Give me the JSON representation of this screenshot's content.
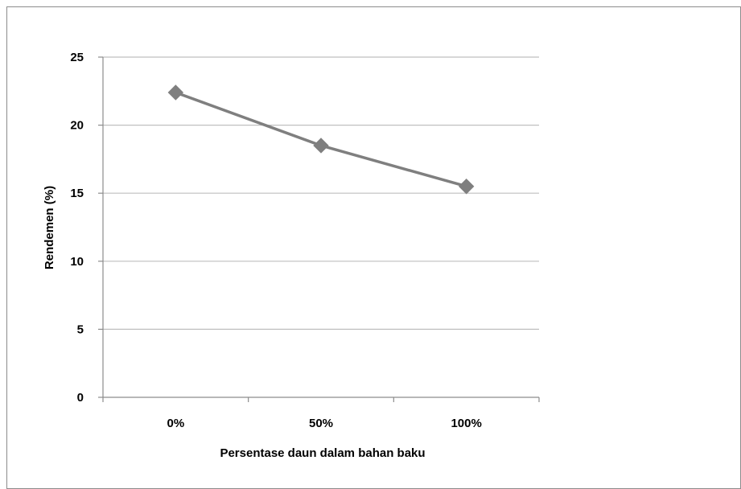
{
  "chart_data": {
    "type": "line",
    "title": "",
    "xlabel": "Persentase daun dalam bahan baku",
    "ylabel": "Rendemen (%)",
    "categories": [
      "0%",
      "50%",
      "100%"
    ],
    "series": [
      {
        "values": [
          22.4,
          18.5,
          15.5
        ],
        "color": "#7f7f7f",
        "marker": "diamond"
      }
    ],
    "ylim": [
      0,
      25
    ],
    "yticks": [
      0,
      5,
      10,
      15,
      20,
      25
    ],
    "grid": true,
    "legend": "none",
    "gridline_color": "#bfbfbf",
    "axis_color": "#8c8c8c"
  }
}
